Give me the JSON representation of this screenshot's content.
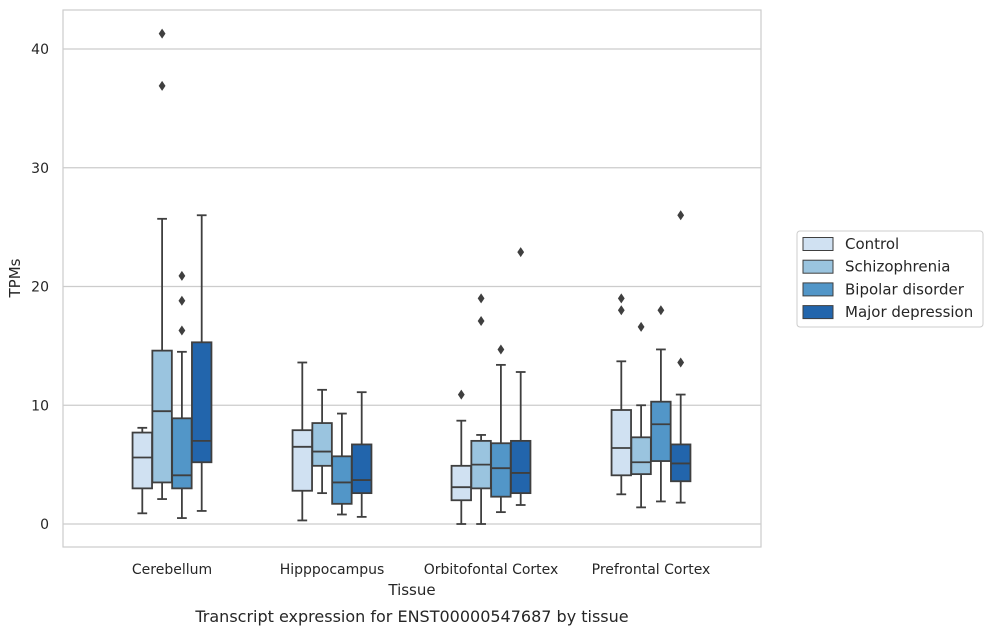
{
  "chart_data": {
    "type": "box",
    "caption": "Transcript expression for ENST00000547687 by tissue",
    "xlabel": "Tissue",
    "ylabel": "TPMs",
    "ylim": [
      -2,
      43
    ],
    "yticks": [
      0,
      10,
      20,
      30,
      40
    ],
    "grid": "horizontal",
    "legend_position": "right",
    "categories": [
      "Cerebellum",
      "Hipppocampus",
      "Orbitofontal Cortex",
      "Prefrontal Cortex"
    ],
    "series": [
      {
        "name": "Control",
        "color": "#d0e1f2",
        "boxes": [
          {
            "whislo": 0.9,
            "q1": 3.0,
            "med": 5.6,
            "q3": 7.7,
            "whishi": 8.1,
            "fliers": []
          },
          {
            "whislo": 0.3,
            "q1": 2.8,
            "med": 6.5,
            "q3": 7.9,
            "whishi": 13.6,
            "fliers": []
          },
          {
            "whislo": 0.0,
            "q1": 2.0,
            "med": 3.1,
            "q3": 4.9,
            "whishi": 8.7,
            "fliers": [
              10.9
            ]
          },
          {
            "whislo": 2.5,
            "q1": 4.1,
            "med": 6.4,
            "q3": 9.6,
            "whishi": 13.7,
            "fliers": [
              18.0,
              19.0
            ]
          }
        ]
      },
      {
        "name": "Schizophrenia",
        "color": "#9ac4df",
        "boxes": [
          {
            "whislo": 2.1,
            "q1": 3.5,
            "med": 9.5,
            "q3": 14.6,
            "whishi": 25.7,
            "fliers": [
              36.9,
              41.3
            ]
          },
          {
            "whislo": 2.6,
            "q1": 4.9,
            "med": 6.1,
            "q3": 8.5,
            "whishi": 11.3,
            "fliers": []
          },
          {
            "whislo": 0.0,
            "q1": 3.0,
            "med": 5.0,
            "q3": 7.0,
            "whishi": 7.5,
            "fliers": [
              17.1,
              19.0
            ]
          },
          {
            "whislo": 1.4,
            "q1": 4.2,
            "med": 5.2,
            "q3": 7.3,
            "whishi": 10.0,
            "fliers": [
              16.6
            ]
          }
        ]
      },
      {
        "name": "Bipolar disorder",
        "color": "#5296c8",
        "boxes": [
          {
            "whislo": 0.5,
            "q1": 3.0,
            "med": 4.1,
            "q3": 8.9,
            "whishi": 14.5,
            "fliers": [
              16.3,
              18.8,
              20.9
            ]
          },
          {
            "whislo": 0.8,
            "q1": 1.7,
            "med": 3.5,
            "q3": 5.7,
            "whishi": 9.3,
            "fliers": []
          },
          {
            "whislo": 1.0,
            "q1": 2.3,
            "med": 4.7,
            "q3": 6.8,
            "whishi": 13.4,
            "fliers": [
              14.7
            ]
          },
          {
            "whislo": 1.9,
            "q1": 5.3,
            "med": 8.4,
            "q3": 10.3,
            "whishi": 14.7,
            "fliers": [
              18.0
            ]
          }
        ]
      },
      {
        "name": "Major depression",
        "color": "#2265ac",
        "boxes": [
          {
            "whislo": 1.1,
            "q1": 5.2,
            "med": 7.0,
            "q3": 15.3,
            "whishi": 26.0,
            "fliers": []
          },
          {
            "whislo": 0.6,
            "q1": 2.6,
            "med": 3.7,
            "q3": 6.7,
            "whishi": 11.1,
            "fliers": []
          },
          {
            "whislo": 1.6,
            "q1": 2.6,
            "med": 4.3,
            "q3": 7.0,
            "whishi": 12.8,
            "fliers": [
              22.9
            ]
          },
          {
            "whislo": 1.8,
            "q1": 3.6,
            "med": 5.1,
            "q3": 6.7,
            "whishi": 10.9,
            "fliers": [
              13.6,
              26.0
            ]
          }
        ]
      }
    ]
  }
}
